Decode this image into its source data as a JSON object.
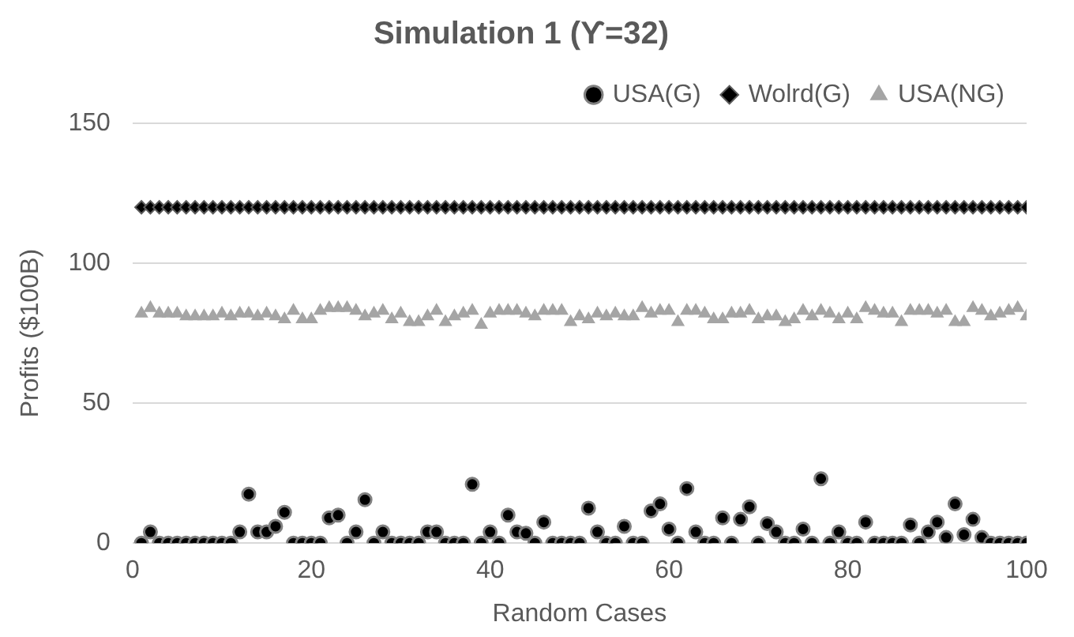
{
  "chart_data": {
    "type": "scatter",
    "title": "Simulation 1 (ϒ=32)",
    "xlabel": "Random Cases",
    "ylabel": "Profits ($100B)",
    "x": [
      1,
      2,
      3,
      4,
      5,
      6,
      7,
      8,
      9,
      10,
      11,
      12,
      13,
      14,
      15,
      16,
      17,
      18,
      19,
      20,
      21,
      22,
      23,
      24,
      25,
      26,
      27,
      28,
      29,
      30,
      31,
      32,
      33,
      34,
      35,
      36,
      37,
      38,
      39,
      40,
      41,
      42,
      43,
      44,
      45,
      46,
      47,
      48,
      49,
      50,
      51,
      52,
      53,
      54,
      55,
      56,
      57,
      58,
      59,
      60,
      61,
      62,
      63,
      64,
      65,
      66,
      67,
      68,
      69,
      70,
      71,
      72,
      73,
      74,
      75,
      76,
      77,
      78,
      79,
      80,
      81,
      82,
      83,
      84,
      85,
      86,
      87,
      88,
      89,
      90,
      91,
      92,
      93,
      94,
      95,
      96,
      97,
      98,
      99,
      100
    ],
    "series": [
      {
        "name": "USA(G)",
        "color": "#000000",
        "marker": "circle",
        "values": [
          0,
          4,
          0,
          0,
          0,
          0,
          0,
          0,
          0,
          0,
          0,
          4,
          17.5,
          4,
          4,
          6,
          11,
          0,
          0,
          0,
          0,
          9,
          10,
          0,
          4,
          15.5,
          0,
          4,
          0,
          0,
          0,
          0,
          4,
          4,
          0,
          0,
          0,
          21,
          0,
          4,
          0,
          10,
          4,
          3.5,
          0,
          7.5,
          0,
          0,
          0,
          0,
          12.5,
          4,
          0,
          0,
          6,
          0,
          0,
          11.5,
          14,
          5,
          0,
          19.5,
          4,
          0,
          0,
          9,
          0,
          8.5,
          13,
          0,
          7,
          4,
          0,
          0,
          5,
          0,
          23,
          0,
          4,
          0,
          0,
          7.5,
          0,
          0,
          0,
          0,
          6.5,
          0,
          4,
          7.5,
          2,
          14,
          3,
          8.5,
          2,
          0,
          0,
          0,
          0,
          0
        ]
      },
      {
        "name": "Wolrd(G)",
        "color": "#000000",
        "marker": "diamond",
        "values": [
          120,
          120,
          120,
          120,
          120,
          120,
          120,
          120,
          120,
          120,
          120,
          120,
          120,
          120,
          120,
          120,
          120,
          120,
          120,
          120,
          120,
          120,
          120,
          120,
          120,
          120,
          120,
          120,
          120,
          120,
          120,
          120,
          120,
          120,
          120,
          120,
          120,
          120,
          120,
          120,
          120,
          120,
          120,
          120,
          120,
          120,
          120,
          120,
          120,
          120,
          120,
          120,
          120,
          120,
          120,
          120,
          120,
          120,
          120,
          120,
          120,
          120,
          120,
          120,
          120,
          120,
          120,
          120,
          120,
          120,
          120,
          120,
          120,
          120,
          120,
          120,
          120,
          120,
          120,
          120,
          120,
          120,
          120,
          120,
          120,
          120,
          120,
          120,
          120,
          120,
          120,
          120,
          120,
          120,
          120,
          120,
          120,
          120,
          120,
          120
        ]
      },
      {
        "name": "USA(NG)",
        "color": "#a5a5a5",
        "marker": "triangle",
        "values": [
          82,
          84,
          82,
          82,
          82,
          81,
          81,
          81,
          81,
          82,
          81,
          82,
          82,
          81,
          82,
          81,
          80,
          83,
          80,
          80,
          83,
          84,
          84,
          84,
          83,
          81,
          82,
          83,
          80,
          82,
          79,
          79,
          81,
          83,
          79,
          81,
          82,
          83,
          78,
          82,
          83,
          83,
          83,
          82,
          81,
          83,
          83,
          83,
          79,
          81,
          80,
          82,
          81,
          82,
          81,
          81,
          84,
          82,
          83,
          83,
          79,
          83,
          83,
          82,
          80,
          80,
          82,
          82,
          83,
          80,
          81,
          81,
          79,
          80,
          83,
          81,
          83,
          82,
          80,
          82,
          80,
          84,
          83,
          82,
          82,
          79,
          83,
          83,
          83,
          82,
          83,
          79,
          79,
          84,
          83,
          81,
          82,
          83,
          84,
          81
        ]
      }
    ],
    "xlim": [
      0,
      100
    ],
    "xticks": [
      0,
      20,
      40,
      60,
      80,
      100
    ],
    "ylim": [
      0,
      150
    ],
    "yticks": [
      0,
      50,
      100,
      150
    ],
    "grid": "y",
    "legend": "top right"
  }
}
